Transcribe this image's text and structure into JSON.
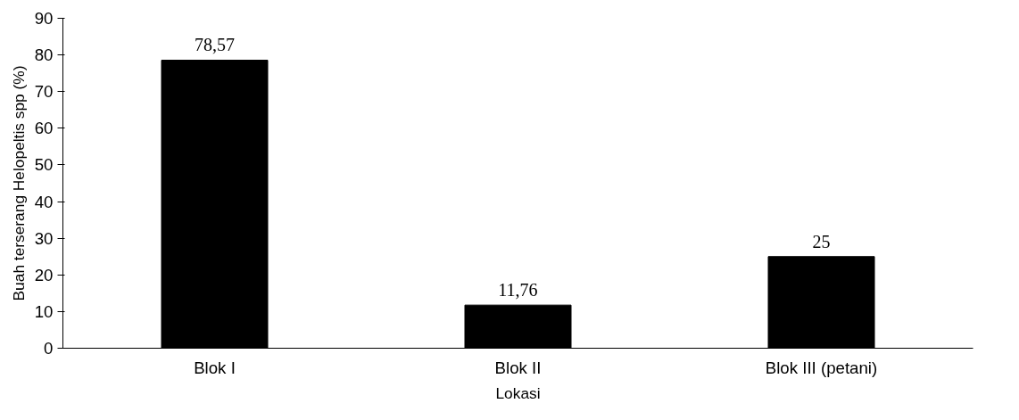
{
  "chart_data": {
    "type": "bar",
    "categories": [
      "Blok I",
      "Blok II",
      "Blok III (petani)"
    ],
    "values": [
      78.57,
      11.76,
      25
    ],
    "value_labels": [
      "78,57",
      "11,76",
      "25"
    ],
    "color": "#000000",
    "xlabel": "Lokasi",
    "ylabel": "Buah terserang Helopeltis spp (%)",
    "ylim": [
      0,
      90
    ],
    "yticks": [
      0,
      10,
      20,
      30,
      40,
      50,
      60,
      70,
      80,
      90
    ],
    "grid": false
  }
}
